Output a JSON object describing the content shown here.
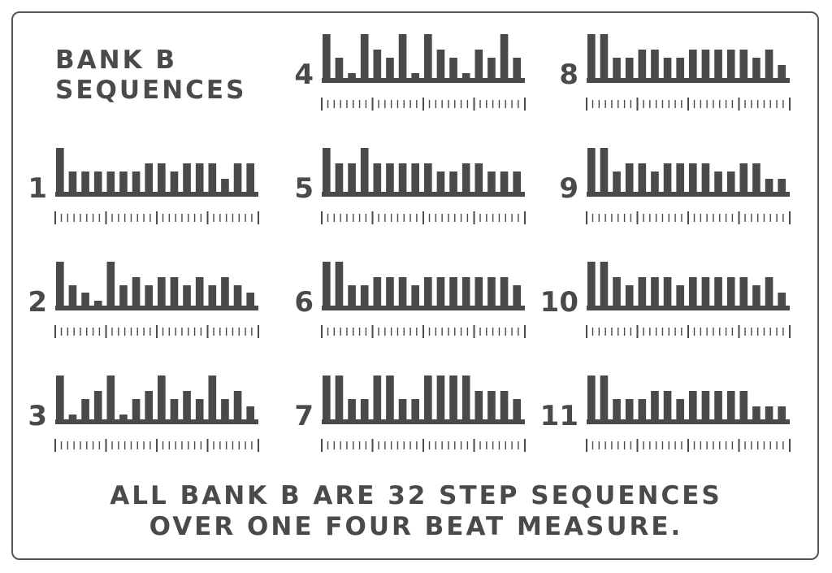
{
  "title": {
    "line1": "BANK B",
    "line2": "SEQUENCES"
  },
  "footer": {
    "line1": "ALL BANK B ARE 32 STEP SEQUENCES",
    "line2": "OVER ONE FOUR BEAT MEASURE."
  },
  "colors": {
    "ink": "#4a4a4a",
    "frame": "#555555"
  },
  "chart_data": {
    "type": "bar",
    "steps_per_sequence": 32,
    "beats": 4,
    "steps_per_beat": 8,
    "level_scale": [
      1,
      5
    ],
    "note": "",
    "sequences": [
      {
        "label": "1",
        "levels": [
          5,
          5,
          3,
          3,
          3,
          3,
          3,
          3,
          3,
          3,
          3,
          3,
          3,
          4,
          4,
          4,
          4,
          4,
          3,
          3,
          4,
          4,
          4,
          4,
          4,
          4,
          2,
          4,
          4,
          4,
          4,
          2
        ]
      },
      {
        "label": "2",
        "levels": [
          5,
          5,
          3,
          3,
          2,
          2,
          1,
          1,
          5,
          5,
          3,
          3,
          4,
          4,
          3,
          3,
          4,
          4,
          4,
          4,
          3,
          3,
          4,
          4,
          3,
          3,
          4,
          4,
          3,
          3,
          2,
          2
        ]
      },
      {
        "label": "3",
        "levels": [
          5,
          5,
          1,
          1,
          3,
          3,
          4,
          4,
          5,
          5,
          1,
          1,
          3,
          3,
          4,
          4,
          5,
          5,
          3,
          3,
          4,
          4,
          3,
          3,
          5,
          5,
          3,
          3,
          4,
          4,
          2,
          2
        ]
      },
      {
        "label": "4",
        "levels": [
          5,
          5,
          3,
          3,
          1,
          1,
          5,
          5,
          4,
          4,
          3,
          3,
          5,
          5,
          1,
          1,
          5,
          5,
          4,
          4,
          3,
          3,
          1,
          1,
          4,
          4,
          3,
          3,
          5,
          5,
          3,
          3
        ]
      },
      {
        "label": "5",
        "levels": [
          5,
          5,
          4,
          4,
          4,
          4,
          5,
          5,
          4,
          4,
          4,
          4,
          4,
          4,
          4,
          4,
          4,
          4,
          3,
          3,
          3,
          3,
          4,
          4,
          4,
          4,
          3,
          3,
          3,
          3,
          3,
          3
        ]
      },
      {
        "label": "6",
        "levels": [
          5,
          5,
          5,
          5,
          3,
          3,
          3,
          3,
          4,
          4,
          4,
          4,
          4,
          4,
          3,
          3,
          4,
          4,
          4,
          4,
          4,
          4,
          4,
          4,
          4,
          4,
          4,
          4,
          4,
          4,
          3,
          3
        ]
      },
      {
        "label": "7",
        "levels": [
          5,
          5,
          5,
          5,
          3,
          3,
          3,
          3,
          5,
          5,
          5,
          5,
          3,
          3,
          3,
          3,
          5,
          5,
          5,
          5,
          5,
          5,
          5,
          5,
          4,
          4,
          4,
          4,
          4,
          4,
          3,
          3
        ]
      },
      {
        "label": "8",
        "levels": [
          5,
          5,
          5,
          5,
          3,
          3,
          3,
          3,
          4,
          4,
          4,
          4,
          3,
          3,
          3,
          3,
          4,
          4,
          4,
          4,
          4,
          4,
          4,
          4,
          4,
          4,
          3,
          3,
          4,
          4,
          2,
          2
        ]
      },
      {
        "label": "9",
        "levels": [
          5,
          5,
          5,
          5,
          3,
          3,
          4,
          4,
          4,
          4,
          3,
          3,
          4,
          4,
          4,
          4,
          4,
          4,
          4,
          4,
          3,
          3,
          3,
          3,
          4,
          4,
          4,
          4,
          2,
          2,
          2,
          2
        ]
      },
      {
        "label": "10",
        "levels": [
          5,
          5,
          5,
          5,
          4,
          4,
          3,
          3,
          4,
          4,
          4,
          4,
          4,
          4,
          3,
          3,
          4,
          4,
          4,
          4,
          4,
          4,
          4,
          4,
          4,
          4,
          3,
          3,
          4,
          4,
          2,
          2
        ]
      },
      {
        "label": "11",
        "levels": [
          5,
          5,
          5,
          5,
          3,
          3,
          3,
          3,
          3,
          3,
          4,
          4,
          4,
          4,
          3,
          3,
          4,
          4,
          4,
          4,
          4,
          4,
          4,
          4,
          4,
          4,
          2,
          2,
          2,
          2,
          2,
          2
        ]
      }
    ]
  }
}
